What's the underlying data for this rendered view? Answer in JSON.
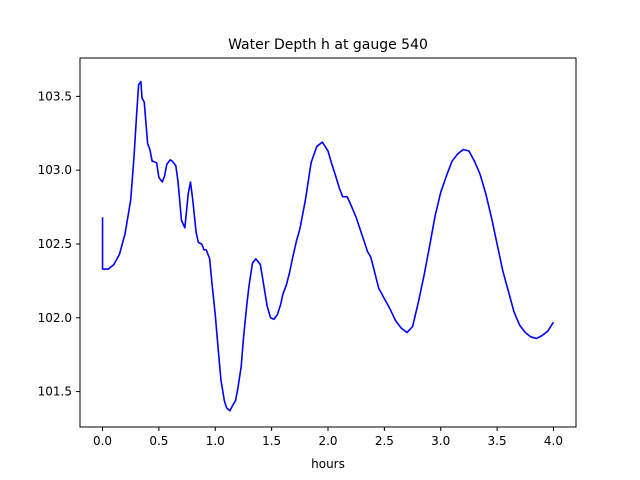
{
  "chart_data": {
    "type": "line",
    "title": "Water Depth h at gauge 540",
    "xlabel": "hours",
    "ylabel": "",
    "xlim": [
      -0.2,
      4.2
    ],
    "ylim": [
      101.26,
      103.76
    ],
    "xticks": [
      0.0,
      0.5,
      1.0,
      1.5,
      2.0,
      2.5,
      3.0,
      3.5,
      4.0
    ],
    "xtick_labels": [
      "0.0",
      "0.5",
      "1.0",
      "1.5",
      "2.0",
      "2.5",
      "3.0",
      "3.5",
      "4.0"
    ],
    "yticks": [
      101.5,
      102.0,
      102.5,
      103.0,
      103.5
    ],
    "ytick_labels": [
      "101.5",
      "102.0",
      "102.5",
      "103.0",
      "103.5"
    ],
    "grid": false,
    "legend": "none",
    "series": [
      {
        "color": "#0000ff",
        "x": [
          0.0,
          0.0,
          0.05,
          0.1,
          0.15,
          0.2,
          0.25,
          0.28,
          0.3,
          0.32,
          0.34,
          0.35,
          0.37,
          0.4,
          0.42,
          0.44,
          0.45,
          0.48,
          0.5,
          0.53,
          0.55,
          0.57,
          0.6,
          0.62,
          0.65,
          0.67,
          0.7,
          0.73,
          0.76,
          0.78,
          0.8,
          0.83,
          0.85,
          0.88,
          0.9,
          0.92,
          0.95,
          0.97,
          1.0,
          1.02,
          1.05,
          1.08,
          1.1,
          1.13,
          1.15,
          1.18,
          1.2,
          1.23,
          1.25,
          1.28,
          1.3,
          1.33,
          1.36,
          1.4,
          1.43,
          1.46,
          1.49,
          1.52,
          1.55,
          1.58,
          1.6,
          1.63,
          1.66,
          1.69,
          1.72,
          1.75,
          1.8,
          1.85,
          1.9,
          1.95,
          2.0,
          2.03,
          2.06,
          2.1,
          2.13,
          2.17,
          2.2,
          2.25,
          2.28,
          2.32,
          2.35,
          2.38,
          2.4,
          2.45,
          2.5,
          2.55,
          2.6,
          2.65,
          2.7,
          2.75,
          2.8,
          2.85,
          2.9,
          2.95,
          3.0,
          3.05,
          3.1,
          3.15,
          3.2,
          3.25,
          3.3,
          3.35,
          3.4,
          3.45,
          3.5,
          3.55,
          3.6,
          3.65,
          3.7,
          3.75,
          3.8,
          3.85,
          3.9,
          3.95,
          4.0
        ],
        "y": [
          102.68,
          102.33,
          102.33,
          102.36,
          102.43,
          102.57,
          102.8,
          103.1,
          103.35,
          103.58,
          103.6,
          103.49,
          103.46,
          103.18,
          103.14,
          103.06,
          103.06,
          103.05,
          102.95,
          102.92,
          102.96,
          103.04,
          103.07,
          103.06,
          103.03,
          102.92,
          102.66,
          102.61,
          102.84,
          102.92,
          102.8,
          102.58,
          102.51,
          102.5,
          102.46,
          102.46,
          102.4,
          102.24,
          102.02,
          101.84,
          101.58,
          101.44,
          101.39,
          101.37,
          101.4,
          101.44,
          101.52,
          101.67,
          101.86,
          102.09,
          102.22,
          102.37,
          102.4,
          102.36,
          102.22,
          102.08,
          102.0,
          101.99,
          102.02,
          102.09,
          102.16,
          102.22,
          102.31,
          102.42,
          102.52,
          102.6,
          102.8,
          103.05,
          103.16,
          103.19,
          103.13,
          103.05,
          102.98,
          102.88,
          102.82,
          102.82,
          102.77,
          102.68,
          102.61,
          102.52,
          102.45,
          102.41,
          102.35,
          102.2,
          102.13,
          102.06,
          101.98,
          101.93,
          101.9,
          101.94,
          102.1,
          102.28,
          102.48,
          102.69,
          102.85,
          102.96,
          103.06,
          103.11,
          103.14,
          103.13,
          103.06,
          102.97,
          102.84,
          102.68,
          102.5,
          102.32,
          102.18,
          102.04,
          101.95,
          101.9,
          101.87,
          101.86,
          101.88,
          101.91,
          101.97
        ]
      }
    ]
  }
}
